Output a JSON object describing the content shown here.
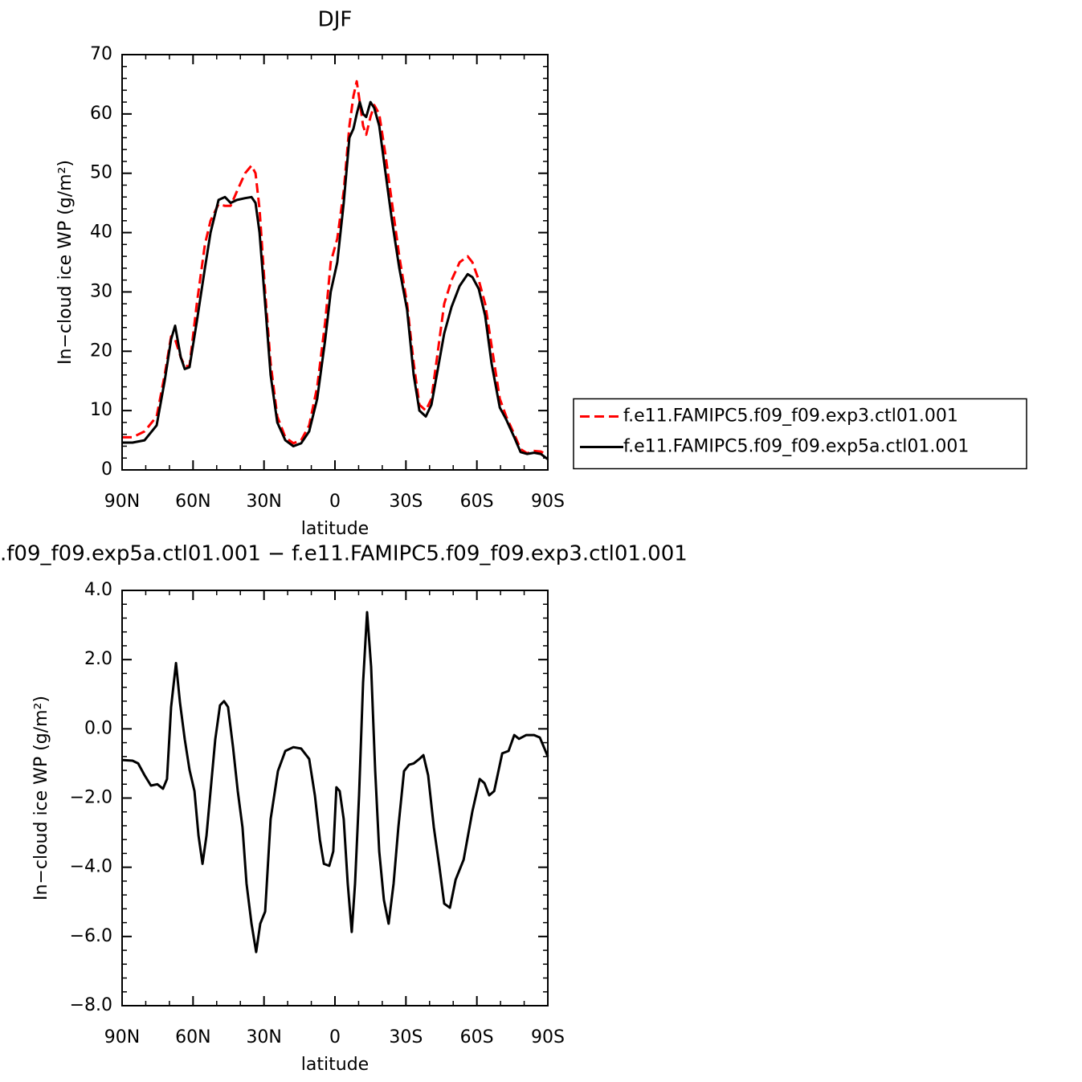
{
  "chart_data": [
    {
      "type": "line",
      "title": "DJF",
      "xlabel": "latitude",
      "ylabel": "In−cloud ice WP (g/m²)",
      "xlim": [
        90,
        -90
      ],
      "ylim": [
        0,
        70
      ],
      "xticks": [
        {
          "value": 90,
          "label": "90N"
        },
        {
          "value": 60,
          "label": "60N"
        },
        {
          "value": 30,
          "label": "30N"
        },
        0,
        {
          "value": -30,
          "label": "30S"
        },
        {
          "value": -60,
          "label": "60S"
        },
        {
          "value": -90,
          "label": "90S"
        }
      ],
      "yticks": [
        0,
        10,
        20,
        30,
        40,
        50,
        60,
        70
      ],
      "legend": "right",
      "x": [
        90,
        85.6,
        80.5,
        75.4,
        72,
        69.3,
        67.6,
        65.2,
        63.5,
        61.5,
        58.4,
        55,
        52.6,
        49.2,
        46.5,
        44.1,
        41.4,
        38,
        35.3,
        33.6,
        31.9,
        29.5,
        27.2,
        24.4,
        21,
        17.6,
        14.3,
        10.9,
        7.5,
        4.1,
        1.8,
        -1,
        -3.7,
        -6.1,
        -7.8,
        -9.2,
        -10.5,
        -11.9,
        -13.2,
        -15,
        -16.6,
        -18.7,
        -21.4,
        -24.1,
        -27.2,
        -30.5,
        -33.3,
        -35.7,
        -38.4,
        -40.8,
        -43.5,
        -46.2,
        -49.3,
        -52.7,
        -56.1,
        -58.1,
        -60.8,
        -63.5,
        -66.2,
        -69.7,
        -72.4,
        -75.8,
        -78.5,
        -81.2,
        -84.2,
        -87,
        -90
      ],
      "series": [
        {
          "name": "f.e11.FAMIPC5.f09_f09.exp3.ctl01.001",
          "color": "#ff0000",
          "linestyle": "dashed",
          "values": [
            5.5,
            5.5,
            6.5,
            9,
            16,
            22.5,
            22,
            19,
            17.5,
            17.5,
            28,
            38,
            42,
            44.8,
            44.5,
            44.5,
            47,
            50,
            51.3,
            50,
            44,
            30,
            18,
            9,
            5.5,
            4.5,
            5,
            7.5,
            14,
            25,
            35,
            39,
            47,
            58,
            63,
            65.5,
            62,
            58,
            56.5,
            59.5,
            61.5,
            60,
            53,
            45,
            36,
            28,
            18,
            11,
            10,
            12,
            20,
            28,
            32,
            35,
            36,
            35,
            32,
            28,
            21,
            12,
            9,
            6,
            3.5,
            2.8,
            3.2,
            3.1,
            2.5
          ]
        },
        {
          "name": "f.e11.FAMIPC5.f09_f09.exp5a.ctl01.001",
          "color": "#000000",
          "linestyle": "solid",
          "values": [
            4.6,
            4.6,
            5,
            7.5,
            15,
            22,
            24.3,
            19,
            17,
            17.3,
            25,
            34,
            40,
            45.5,
            46,
            45,
            45.5,
            45.8,
            46,
            45,
            40,
            28,
            16,
            8,
            5,
            4,
            4.5,
            6.5,
            12,
            22,
            30,
            35,
            45,
            56,
            57.5,
            60,
            62,
            60,
            59.5,
            62,
            61,
            58,
            50,
            42,
            34,
            27,
            16,
            10,
            9,
            11,
            17,
            23,
            27.5,
            31,
            33,
            32.5,
            30.5,
            26,
            18,
            10.5,
            8.5,
            5.5,
            3,
            2.7,
            2.9,
            2.7,
            1.8
          ]
        }
      ]
    },
    {
      "type": "line",
      "title": ".f09_f09.exp5a.ctl01.001 − f.e11.FAMIPC5.f09_f09.exp3.ctl01.001",
      "xlabel": "latitude",
      "ylabel": "In−cloud ice WP (g/m²)",
      "xlim": [
        90,
        -90
      ],
      "ylim": [
        -8,
        4
      ],
      "xticks": [
        {
          "value": 90,
          "label": "90N"
        },
        {
          "value": 60,
          "label": "60N"
        },
        {
          "value": 30,
          "label": "30N"
        },
        0,
        {
          "value": -30,
          "label": "30S"
        },
        {
          "value": -60,
          "label": "60S"
        },
        {
          "value": -90,
          "label": "90S"
        }
      ],
      "yticks": [
        {
          "value": 4,
          "label": "4.0"
        },
        {
          "value": 2,
          "label": "2.0"
        },
        {
          "value": 0,
          "label": "0.0"
        },
        {
          "value": -2,
          "label": "−2.0"
        },
        {
          "value": -4,
          "label": "−4.0"
        },
        {
          "value": -6,
          "label": "−6.0"
        },
        {
          "value": -8,
          "label": "−8.0"
        }
      ],
      "x": [
        90,
        85.6,
        83.2,
        80.5,
        77.8,
        75.1,
        72.7,
        71,
        69.3,
        67.2,
        65.5,
        63.5,
        61.5,
        59.4,
        57.7,
        56,
        54.3,
        52.6,
        50.6,
        48.6,
        46.9,
        45.2,
        43.1,
        41.1,
        39.1,
        37.4,
        35.3,
        33.3,
        31.6,
        29.5,
        27.2,
        24.1,
        21,
        17.6,
        14.3,
        10.9,
        8.5,
        6.4,
        4.7,
        2.4,
        0.7,
        -0.6,
        -2,
        -3.7,
        -5.4,
        -7.1,
        -8.5,
        -10.2,
        -11.9,
        -13.6,
        -15.3,
        -17,
        -18.7,
        -20.7,
        -22.7,
        -24.8,
        -26.8,
        -29.2,
        -31.3,
        -33.3,
        -35.7,
        -37.4,
        -39.4,
        -41.8,
        -44.2,
        -46.2,
        -48.6,
        -51,
        -54.4,
        -58.1,
        -61.2,
        -63.2,
        -65.2,
        -67.3,
        -70.7,
        -73.4,
        -75.8,
        -77.8,
        -80.9,
        -84.2,
        -86.6,
        -90
      ],
      "series": [
        {
          "color": "#000000",
          "linestyle": "solid",
          "values": [
            -0.9,
            -0.92,
            -1.0,
            -1.34,
            -1.64,
            -1.6,
            -1.73,
            -1.45,
            0.63,
            1.9,
            0.75,
            -0.3,
            -1.18,
            -1.8,
            -3.08,
            -3.9,
            -3.08,
            -1.8,
            -0.3,
            0.68,
            0.8,
            0.63,
            -0.53,
            -1.8,
            -2.85,
            -4.47,
            -5.63,
            -6.45,
            -5.63,
            -5.28,
            -2.61,
            -1.22,
            -0.64,
            -0.53,
            -0.57,
            -0.87,
            -1.92,
            -3.2,
            -3.9,
            -3.96,
            -3.54,
            -1.69,
            -1.8,
            -2.61,
            -4.47,
            -5.87,
            -4.47,
            -1.92,
            1.33,
            3.37,
            1.8,
            -1.22,
            -3.54,
            -4.94,
            -5.63,
            -4.47,
            -2.85,
            -1.22,
            -1.04,
            -1.0,
            -0.87,
            -0.76,
            -1.34,
            -2.85,
            -4.0,
            -5.05,
            -5.17,
            -4.36,
            -3.78,
            -2.38,
            -1.45,
            -1.57,
            -1.92,
            -1.8,
            -0.71,
            -0.64,
            -0.18,
            -0.29,
            -0.18,
            -0.18,
            -0.25,
            -0.8
          ]
        }
      ]
    }
  ]
}
